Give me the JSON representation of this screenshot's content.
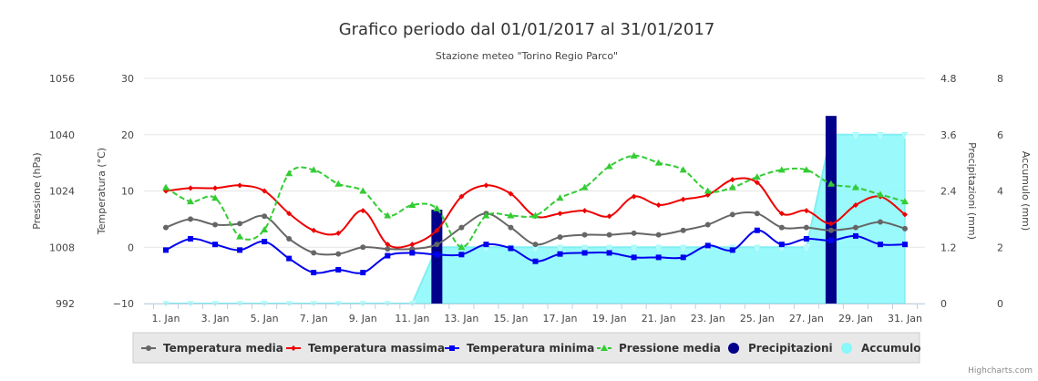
{
  "chart_data": {
    "type": "line",
    "title": "Grafico periodo dal 01/01/2017 al 31/01/2017",
    "subtitle": "Stazione meteo \"Torino Regio Parco\"",
    "credits": "Highcharts.com",
    "x": [
      1,
      2,
      3,
      4,
      5,
      6,
      7,
      8,
      9,
      10,
      11,
      12,
      13,
      14,
      15,
      16,
      17,
      18,
      19,
      20,
      21,
      22,
      23,
      24,
      25,
      26,
      27,
      28,
      29,
      30,
      31
    ],
    "x_tick_labels": [
      "1. Jan",
      "3. Jan",
      "5. Jan",
      "7. Jan",
      "9. Jan",
      "11. Jan",
      "13. Jan",
      "15. Jan",
      "17. Jan",
      "19. Jan",
      "21. Jan",
      "23. Jan",
      "25. Jan",
      "27. Jan",
      "29. Jan",
      "31. Jan"
    ],
    "axes": {
      "pressure": {
        "title": "Pressione (hPa)",
        "side": "left",
        "range": [
          992,
          1056
        ],
        "ticks": [
          "1056",
          "1040",
          "1024",
          "1008",
          "992"
        ]
      },
      "temperature": {
        "title": "Temperatura (°C)",
        "side": "left",
        "range": [
          -10,
          30
        ],
        "ticks": [
          "30",
          "20",
          "10",
          "0",
          "−10"
        ]
      },
      "precipitation": {
        "title": "Precipitazioni (mm)",
        "side": "right",
        "range": [
          0,
          4.8
        ],
        "ticks": [
          "4.8",
          "3.6",
          "2.4",
          "1.2",
          "0"
        ]
      },
      "accumulation": {
        "title": "Accumulo (mm)",
        "side": "right",
        "range": [
          0,
          8
        ],
        "ticks": [
          "8",
          "6",
          "4",
          "2",
          "0"
        ]
      }
    },
    "grid": true,
    "legend_position": "bottom",
    "series": [
      {
        "name": "Temperatura media",
        "type": "line",
        "axis": "temperature",
        "color": "#666666",
        "marker": "circle",
        "values": [
          3.5,
          5,
          4,
          4.2,
          5.5,
          1.5,
          -1,
          -1.2,
          0,
          -0.3,
          -0.3,
          0.5,
          3.5,
          6,
          3.5,
          0.5,
          1.8,
          2.2,
          2.2,
          2.5,
          2.2,
          3,
          4,
          5.8,
          6,
          3.5,
          3.5,
          3,
          3.5,
          4.5,
          3.3
        ]
      },
      {
        "name": "Temperatura massima",
        "type": "spline",
        "axis": "temperature",
        "color": "#ee0000",
        "marker": "diamond",
        "values": [
          10,
          10.5,
          10.5,
          11,
          10,
          6,
          3,
          2.5,
          6.5,
          0.5,
          0.5,
          3,
          9,
          11,
          9.5,
          5.5,
          6,
          6.5,
          5.5,
          9,
          7.5,
          8.5,
          9.3,
          12,
          11.5,
          6,
          6.5,
          4.2,
          7.5,
          9,
          5.8
        ]
      },
      {
        "name": "Temperatura minima",
        "type": "line",
        "axis": "temperature",
        "color": "#0000ee",
        "marker": "square",
        "values": [
          -0.5,
          1.5,
          0.5,
          -0.5,
          1,
          -2,
          -4.5,
          -4,
          -4.5,
          -1.5,
          -1,
          -1.3,
          -1.3,
          0.5,
          -0.2,
          -2.5,
          -1.2,
          -1,
          -1,
          -1.8,
          -1.8,
          -1.8,
          0.3,
          -0.5,
          3,
          0.5,
          1.5,
          1.2,
          2,
          0.5,
          0.5
        ]
      },
      {
        "name": "Pressione media",
        "type": "spline",
        "axis": "pressure",
        "color": "#33cc33",
        "marker": "triangle",
        "dashed": true,
        "values": [
          1025,
          1021,
          1022,
          1011,
          1013,
          1029,
          1030,
          1026,
          1024,
          1017,
          1020,
          1019,
          1008,
          1017,
          1017,
          1017,
          1022,
          1025,
          1031,
          1034,
          1032,
          1030,
          1024,
          1025,
          1028,
          1030,
          1030,
          1026,
          1025,
          1023,
          1021
        ]
      },
      {
        "name": "Precipitazioni",
        "type": "column",
        "axis": "precipitation",
        "color": "#00008b",
        "values": [
          0,
          0,
          0,
          0,
          0,
          0,
          0,
          0,
          0,
          0,
          0,
          2,
          0,
          0,
          0,
          0,
          0,
          0,
          0,
          0,
          0,
          0,
          0,
          0,
          0,
          0,
          0,
          4,
          0,
          0,
          0
        ]
      },
      {
        "name": "Accumulo",
        "type": "area",
        "axis": "accumulation",
        "color": "#88f8fa",
        "values": [
          0,
          0,
          0,
          0,
          0,
          0,
          0,
          0,
          0,
          0,
          0,
          2,
          2,
          2,
          2,
          2,
          2,
          2,
          2,
          2,
          2,
          2,
          2,
          2,
          2,
          2,
          2,
          6,
          6,
          6,
          6
        ]
      }
    ]
  }
}
